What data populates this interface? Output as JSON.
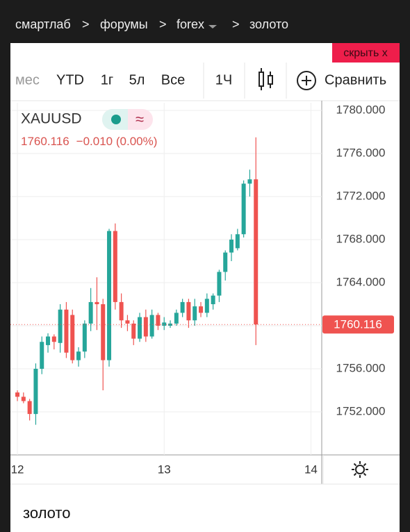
{
  "breadcrumb": {
    "items": [
      "смартлаб",
      "форумы",
      "forex",
      "золото"
    ],
    "separator": ">"
  },
  "hide_button": "скрыть x",
  "toolbar": [
    "мес",
    "YTD",
    "1г",
    "5л",
    "Все",
    "1Ч",
    "Сравнить"
  ],
  "symbol": "XAUUSD",
  "change": "−0.010 (0.00%)",
  "footer_title": "золото",
  "chart_data": {
    "type": "candlestick",
    "x": [
      0,
      1,
      2,
      3,
      4,
      5,
      6,
      7,
      8,
      9,
      10,
      11,
      12,
      13,
      14,
      15,
      16,
      17,
      18,
      19,
      20,
      21,
      22,
      23,
      24,
      25,
      26,
      27,
      28,
      29,
      30,
      31,
      32,
      33,
      34,
      35,
      36,
      37,
      38,
      39
    ],
    "open": [
      1753.8,
      1753.4,
      1753.0,
      1751.8,
      1756.0,
      1758.2,
      1759.0,
      1758.4,
      1761.5,
      1761.0,
      1756.8,
      1757.6,
      1760.2,
      1762.2,
      1762.0,
      1756.8,
      1768.8,
      1762.2,
      1760.5,
      1760.2,
      1758.8,
      1760.8,
      1759.0,
      1761.0,
      1760.0,
      1760.0,
      1760.2,
      1761.2,
      1762.2,
      1760.5,
      1761.8,
      1761.2,
      1762.0,
      1762.8,
      1765.0,
      1766.8,
      1767.2,
      1768.5,
      1773.2,
      1773.6
    ],
    "high": [
      1754.0,
      1753.8,
      1753.2,
      1756.5,
      1759.0,
      1759.3,
      1759.2,
      1762.0,
      1762.2,
      1761.5,
      1758.0,
      1760.5,
      1763.5,
      1764.5,
      1762.5,
      1769.0,
      1769.5,
      1763.0,
      1761.0,
      1760.5,
      1761.2,
      1761.5,
      1761.5,
      1761.2,
      1760.8,
      1760.5,
      1761.5,
      1762.5,
      1762.5,
      1762.5,
      1762.2,
      1763.0,
      1763.0,
      1765.2,
      1767.0,
      1768.5,
      1769.0,
      1773.5,
      1774.5,
      1777.5
    ],
    "low": [
      1753.0,
      1752.8,
      1751.2,
      1750.8,
      1755.5,
      1757.5,
      1757.8,
      1757.5,
      1757.0,
      1756.5,
      1756.2,
      1757.0,
      1759.5,
      1759.6,
      1754.0,
      1756.2,
      1761.5,
      1759.8,
      1759.5,
      1758.2,
      1758.5,
      1758.5,
      1758.8,
      1759.6,
      1759.6,
      1759.8,
      1760.0,
      1760.8,
      1759.8,
      1760.0,
      1760.8,
      1760.8,
      1761.5,
      1762.2,
      1764.2,
      1766.0,
      1767.0,
      1768.2,
      1772.0,
      1758.2
    ],
    "close": [
      1753.4,
      1753.0,
      1751.8,
      1756.0,
      1758.5,
      1759.0,
      1758.5,
      1761.5,
      1757.5,
      1756.8,
      1757.6,
      1760.2,
      1762.2,
      1762.0,
      1756.8,
      1768.8,
      1762.2,
      1760.5,
      1760.2,
      1758.8,
      1760.8,
      1759.0,
      1761.0,
      1760.0,
      1760.3,
      1760.2,
      1761.2,
      1762.2,
      1760.5,
      1761.8,
      1761.2,
      1762.5,
      1762.8,
      1765.0,
      1766.8,
      1768.0,
      1768.5,
      1773.2,
      1773.6,
      1760.116
    ],
    "up_color": "#26a69a",
    "down_color": "#ef5350",
    "xlim": [
      -1.14,
      49.77
    ],
    "xticks": [
      {
        "value": 0,
        "label": "12"
      },
      {
        "value": 24,
        "label": "13"
      },
      {
        "value": 48,
        "label": "14"
      }
    ],
    "ylim": [
      1748,
      1780.71
    ],
    "yticks": [
      {
        "value": 1752,
        "label": "1752.000"
      },
      {
        "value": 1756,
        "label": "1756.000"
      },
      {
        "value": 1760,
        "label": "1760.000"
      },
      {
        "value": 1764,
        "label": "1764.000"
      },
      {
        "value": 1768,
        "label": "1768.000"
      },
      {
        "value": 1772,
        "label": "1772.000"
      },
      {
        "value": 1776,
        "label": "1776.000"
      },
      {
        "value": 1780,
        "label": "1780.000"
      }
    ],
    "grid": true
  }
}
